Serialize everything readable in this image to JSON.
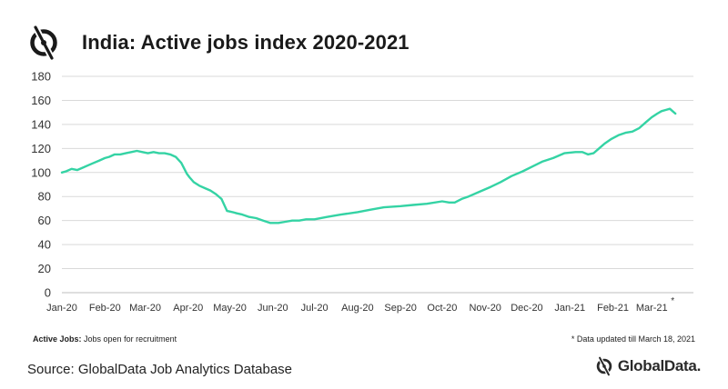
{
  "header": {
    "title": "India: Active jobs index 2020-2021",
    "logo_icon": "globaldata-logo-icon"
  },
  "notes": {
    "left_bold": "Active Jobs:",
    "left_text": " Jobs open for recruitment",
    "right": "* Data updated till March 18, 2021",
    "axis_marker": "*"
  },
  "footer": {
    "source": "Source: GlobalData Job Analytics Database",
    "brand": "GlobalData."
  },
  "colors": {
    "line": "#34d3a4",
    "grid": "#d9d9d9",
    "axis": "#bfbfbf"
  },
  "chart_data": {
    "type": "line",
    "title": "India: Active jobs index 2020-2021",
    "xlabel": "",
    "ylabel": "",
    "ylim": [
      0,
      180
    ],
    "yticks": [
      0,
      20,
      40,
      60,
      80,
      100,
      120,
      140,
      160,
      180
    ],
    "x_range": [
      "2020-01-01",
      "2021-03-31"
    ],
    "x_ticks": [
      {
        "label": "Jan-20",
        "date": "2020-01-01"
      },
      {
        "label": "Feb-20",
        "date": "2020-02-01"
      },
      {
        "label": "Mar-20",
        "date": "2020-03-01"
      },
      {
        "label": "Apr-20",
        "date": "2020-04-01"
      },
      {
        "label": "May-20",
        "date": "2020-05-01"
      },
      {
        "label": "Jun-20",
        "date": "2020-06-01"
      },
      {
        "label": "Jul-20",
        "date": "2020-07-01"
      },
      {
        "label": "Aug-20",
        "date": "2020-08-01"
      },
      {
        "label": "Sep-20",
        "date": "2020-09-01"
      },
      {
        "label": "Oct-20",
        "date": "2020-10-01"
      },
      {
        "label": "Nov-20",
        "date": "2020-11-01"
      },
      {
        "label": "Dec-20",
        "date": "2020-12-01"
      },
      {
        "label": "Jan-21",
        "date": "2021-01-01"
      },
      {
        "label": "Feb-21",
        "date": "2021-02-01"
      },
      {
        "label": "Mar-21",
        "date": "2021-03-01"
      }
    ],
    "grid": true,
    "legend": "none",
    "series": [
      {
        "x": [
          "2020-01-01",
          "2020-01-04",
          "2020-01-08",
          "2020-01-12",
          "2020-01-16",
          "2020-01-20",
          "2020-01-24",
          "2020-01-28",
          "2020-02-01",
          "2020-02-04",
          "2020-02-08",
          "2020-02-12",
          "2020-02-16",
          "2020-02-20",
          "2020-02-24",
          "2020-02-28",
          "2020-03-03",
          "2020-03-07",
          "2020-03-11",
          "2020-03-15",
          "2020-03-19",
          "2020-03-23",
          "2020-03-27",
          "2020-03-31",
          "2020-04-02",
          "2020-04-05",
          "2020-04-09",
          "2020-04-13",
          "2020-04-17",
          "2020-04-21",
          "2020-04-25",
          "2020-04-29",
          "2020-05-03",
          "2020-05-06",
          "2020-05-10",
          "2020-05-15",
          "2020-05-20",
          "2020-05-25",
          "2020-05-30",
          "2020-06-05",
          "2020-06-10",
          "2020-06-15",
          "2020-06-20",
          "2020-06-25",
          "2020-07-01",
          "2020-07-10",
          "2020-07-20",
          "2020-08-01",
          "2020-08-10",
          "2020-08-20",
          "2020-09-01",
          "2020-09-10",
          "2020-09-20",
          "2020-10-01",
          "2020-10-06",
          "2020-10-10",
          "2020-10-15",
          "2020-10-20",
          "2020-10-28",
          "2020-11-05",
          "2020-11-12",
          "2020-11-20",
          "2020-11-28",
          "2020-12-05",
          "2020-12-12",
          "2020-12-20",
          "2020-12-28",
          "2021-01-05",
          "2021-01-10",
          "2021-01-14",
          "2021-01-18",
          "2021-01-22",
          "2021-01-26",
          "2021-01-31",
          "2021-02-05",
          "2021-02-10",
          "2021-02-15",
          "2021-02-20",
          "2021-02-25",
          "2021-03-01",
          "2021-03-05",
          "2021-03-08",
          "2021-03-11",
          "2021-03-14",
          "2021-03-16",
          "2021-03-18"
        ],
        "y": [
          100,
          101,
          103,
          102,
          104,
          106,
          108,
          110,
          112,
          113,
          115,
          115,
          116,
          117,
          118,
          117,
          116,
          117,
          116,
          116,
          115,
          113,
          108,
          99,
          96,
          92,
          89,
          87,
          85,
          82,
          78,
          68,
          67,
          66,
          65,
          63,
          62,
          60,
          58,
          58,
          59,
          60,
          60,
          61,
          61,
          63,
          65,
          67,
          69,
          71,
          72,
          73,
          74,
          76,
          75,
          75,
          78,
          80,
          84,
          88,
          92,
          97,
          101,
          105,
          109,
          112,
          116,
          117,
          117,
          115,
          116,
          120,
          124,
          128,
          131,
          133,
          134,
          137,
          142,
          146,
          149,
          151,
          152,
          153,
          151,
          149
        ]
      }
    ]
  }
}
